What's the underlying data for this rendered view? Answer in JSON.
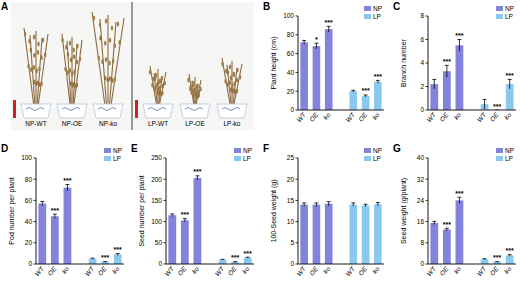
{
  "photo_panel": {
    "title": "A",
    "labels": [
      "NP-WT",
      "NP-OE",
      "NP-ko",
      "LP-WT",
      "LP-OE",
      "LP-ko"
    ]
  },
  "chart_data": [
    {
      "type": "bar",
      "title": "B",
      "y_label": "Plant height (cm)",
      "categories": [
        "WT",
        "OE",
        "ko"
      ],
      "ylim": [
        0,
        100
      ],
      "yticks": [
        0,
        20,
        40,
        60,
        80,
        100
      ],
      "legend": "upper right",
      "series": [
        {
          "name": "NP",
          "color": "#8383dc",
          "values": [
            72,
            68,
            86
          ],
          "errors": [
            2,
            3,
            3
          ],
          "significance": [
            null,
            "*",
            "***"
          ]
        },
        {
          "name": "LP",
          "color": "#8ac8f0",
          "values": [
            20,
            15,
            30
          ],
          "errors": [
            1,
            1,
            1.5
          ],
          "significance": [
            null,
            "***",
            "***"
          ]
        }
      ]
    },
    {
      "type": "bar",
      "title": "C",
      "y_label": "Branch number",
      "categories": [
        "WT",
        "OE",
        "ko"
      ],
      "ylim": [
        0,
        8
      ],
      "yticks": [
        0,
        2,
        4,
        6,
        8
      ],
      "legend": "upper right",
      "series": [
        {
          "name": "NP",
          "color": "#8383dc",
          "values": [
            2.2,
            3.3,
            5.5
          ],
          "errors": [
            0.4,
            0.5,
            0.5
          ],
          "significance": [
            null,
            "***",
            "***"
          ]
        },
        {
          "name": "LP",
          "color": "#8ac8f0",
          "values": [
            0.5,
            0,
            2.2
          ],
          "errors": [
            0.4,
            0,
            0.4
          ],
          "significance": [
            null,
            "***",
            "***"
          ]
        }
      ]
    },
    {
      "type": "bar",
      "title": "D",
      "y_label": "Pod number per plant",
      "categories": [
        "WT",
        "OE",
        "ko"
      ],
      "ylim": [
        0,
        100
      ],
      "yticks": [
        0,
        20,
        40,
        60,
        80,
        100
      ],
      "legend": "upper right",
      "series": [
        {
          "name": "NP",
          "color": "#8383dc",
          "values": [
            57,
            45,
            72
          ],
          "errors": [
            2,
            2,
            3
          ],
          "significance": [
            null,
            "***",
            "***"
          ]
        },
        {
          "name": "LP",
          "color": "#8ac8f0",
          "values": [
            5,
            2,
            9
          ],
          "errors": [
            0.5,
            0.3,
            0.8
          ],
          "significance": [
            null,
            "***",
            "***"
          ]
        }
      ]
    },
    {
      "type": "bar",
      "title": "E",
      "y_label": "Seed number per plant",
      "categories": [
        "WT",
        "OE",
        "ko"
      ],
      "ylim": [
        0,
        250
      ],
      "yticks": [
        0,
        50,
        100,
        150,
        200,
        250
      ],
      "legend": "upper right",
      "series": [
        {
          "name": "NP",
          "color": "#8383dc",
          "values": [
            115,
            103,
            203
          ],
          "errors": [
            3,
            4,
            5
          ],
          "significance": [
            null,
            "***",
            "***"
          ]
        },
        {
          "name": "LP",
          "color": "#8ac8f0",
          "values": [
            10,
            5,
            15
          ],
          "errors": [
            1,
            0.5,
            1
          ],
          "significance": [
            null,
            "***",
            "***"
          ]
        }
      ]
    },
    {
      "type": "bar",
      "title": "F",
      "y_label": "100-Seed weight (g)",
      "categories": [
        "WT",
        "OE",
        "ko"
      ],
      "ylim": [
        0,
        25
      ],
      "yticks": [
        0,
        5,
        10,
        15,
        20,
        25
      ],
      "legend": "upper right",
      "series": [
        {
          "name": "NP",
          "color": "#8383dc",
          "values": [
            14,
            14,
            14.2
          ],
          "errors": [
            0.4,
            0.4,
            0.5
          ],
          "significance": [
            null,
            null,
            null
          ]
        },
        {
          "name": "LP",
          "color": "#8ac8f0",
          "values": [
            14,
            13.8,
            14.1
          ],
          "errors": [
            0.4,
            0.3,
            0.4
          ],
          "significance": [
            null,
            null,
            null
          ]
        }
      ]
    },
    {
      "type": "bar",
      "title": "G",
      "y_label": "Seed weight (g/plant)",
      "categories": [
        "WT",
        "OE",
        "ko"
      ],
      "ylim": [
        0,
        40
      ],
      "yticks": [
        0,
        8,
        16,
        24,
        32,
        40
      ],
      "legend": "upper right",
      "series": [
        {
          "name": "NP",
          "color": "#8383dc",
          "values": [
            15.5,
            13,
            24
          ],
          "errors": [
            0.6,
            0.5,
            1.2
          ],
          "significance": [
            null,
            "***",
            "***"
          ]
        },
        {
          "name": "LP",
          "color": "#8ac8f0",
          "values": [
            1.8,
            0.8,
            3.2
          ],
          "errors": [
            0.2,
            0.1,
            0.3
          ],
          "significance": [
            null,
            "***",
            "***"
          ]
        }
      ]
    }
  ]
}
